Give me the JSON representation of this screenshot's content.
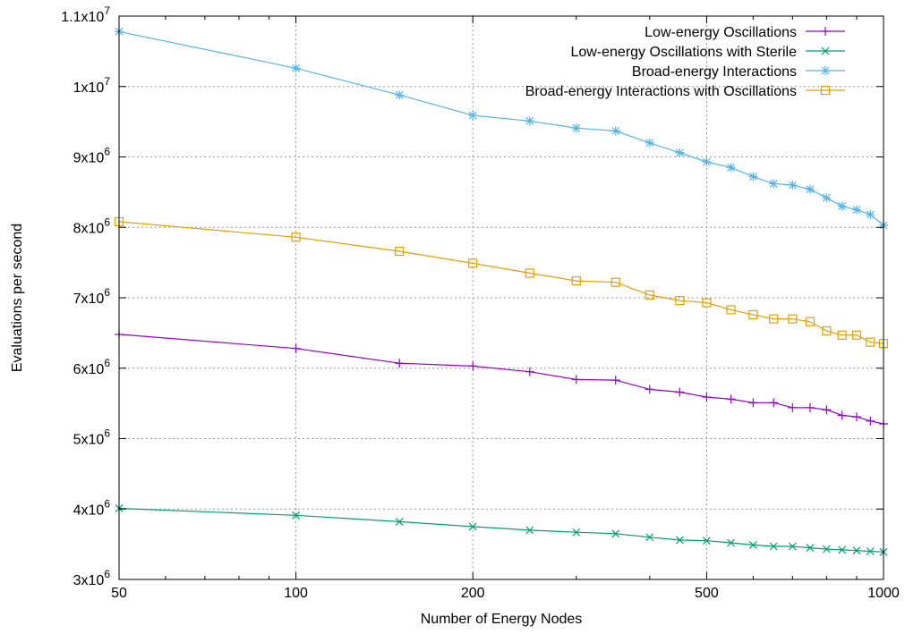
{
  "chart_data": {
    "type": "line",
    "xlabel": "Number of Energy Nodes",
    "ylabel": "Evaluations per second",
    "xscale": "log",
    "xlim": [
      50,
      1000
    ],
    "ylim": [
      3000000,
      11000000
    ],
    "grid": true,
    "legend_position": "top-right",
    "x_ticks": [
      {
        "value": 50,
        "label": "50"
      },
      {
        "value": 100,
        "label": "100"
      },
      {
        "value": 200,
        "label": "200"
      },
      {
        "value": 500,
        "label": "500"
      },
      {
        "value": 1000,
        "label": "1000"
      }
    ],
    "y_ticks": [
      {
        "value": 3000000,
        "mant": "3x10",
        "exp": "6"
      },
      {
        "value": 4000000,
        "mant": "4x10",
        "exp": "6"
      },
      {
        "value": 5000000,
        "mant": "5x10",
        "exp": "6"
      },
      {
        "value": 6000000,
        "mant": "6x10",
        "exp": "6"
      },
      {
        "value": 7000000,
        "mant": "7x10",
        "exp": "6"
      },
      {
        "value": 8000000,
        "mant": "8x10",
        "exp": "6"
      },
      {
        "value": 9000000,
        "mant": "9x10",
        "exp": "6"
      },
      {
        "value": 10000000,
        "mant": "1x10",
        "exp": "7"
      },
      {
        "value": 11000000,
        "mant": "1.1x10",
        "exp": "7"
      }
    ],
    "x": [
      50,
      100,
      150,
      200,
      250,
      300,
      350,
      400,
      450,
      500,
      550,
      600,
      650,
      700,
      750,
      800,
      850,
      900,
      950,
      1000
    ],
    "series": [
      {
        "name": "Low-energy Oscillations",
        "color": "#9400d3",
        "marker": "plus",
        "values": [
          6480000,
          6280000,
          6070000,
          6030000,
          5950000,
          5840000,
          5830000,
          5700000,
          5660000,
          5590000,
          5560000,
          5510000,
          5510000,
          5440000,
          5440000,
          5410000,
          5330000,
          5310000,
          5250000,
          5210000
        ]
      },
      {
        "name": "Low-energy Oscillations with Sterile",
        "color": "#009e73",
        "marker": "cross",
        "values": [
          4010000,
          3910000,
          3820000,
          3750000,
          3700000,
          3670000,
          3650000,
          3600000,
          3560000,
          3550000,
          3520000,
          3490000,
          3470000,
          3470000,
          3450000,
          3430000,
          3420000,
          3410000,
          3400000,
          3390000
        ]
      },
      {
        "name": "Broad-energy Interactions",
        "color": "#56b4e9",
        "marker": "star",
        "values": [
          10780000,
          10260000,
          9880000,
          9590000,
          9510000,
          9410000,
          9370000,
          9200000,
          9060000,
          8930000,
          8850000,
          8720000,
          8620000,
          8600000,
          8540000,
          8420000,
          8300000,
          8250000,
          8180000,
          8030000
        ]
      },
      {
        "name": "Broad-energy Interactions with Oscillations",
        "color": "#e69f00",
        "marker": "square",
        "values": [
          8080000,
          7860000,
          7660000,
          7490000,
          7350000,
          7240000,
          7220000,
          7040000,
          6960000,
          6930000,
          6830000,
          6760000,
          6700000,
          6700000,
          6660000,
          6530000,
          6470000,
          6470000,
          6370000,
          6350000
        ]
      }
    ]
  }
}
